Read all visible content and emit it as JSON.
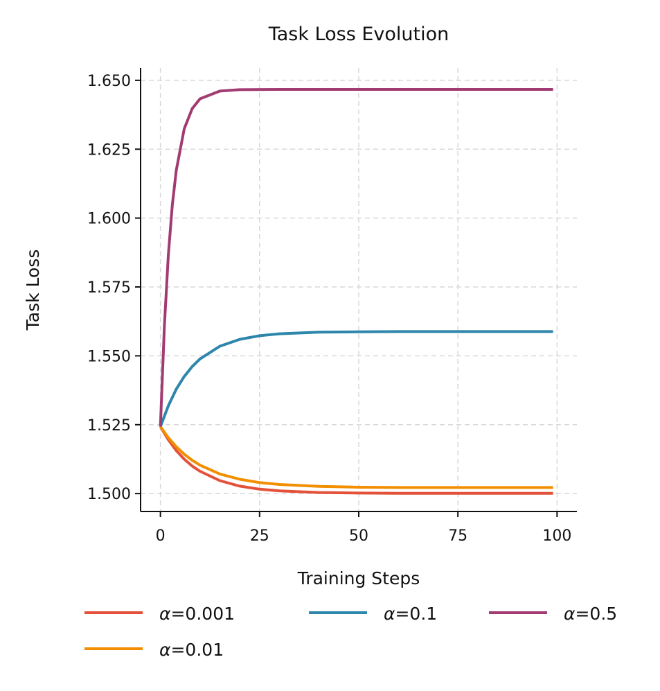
{
  "chart_data": {
    "type": "line",
    "title": "Task Loss Evolution",
    "xlabel": "Training Steps",
    "ylabel": "Task Loss",
    "xlim": [
      -5,
      105
    ],
    "ylim": [
      1.4935,
      1.6545
    ],
    "xticks": [
      0,
      25,
      50,
      75,
      100
    ],
    "xtick_labels": [
      "0",
      "25",
      "50",
      "75",
      "100"
    ],
    "yticks": [
      1.5,
      1.525,
      1.55,
      1.575,
      1.6,
      1.625,
      1.65
    ],
    "ytick_labels": [
      "1.500",
      "1.525",
      "1.550",
      "1.575",
      "1.600",
      "1.625",
      "1.650"
    ],
    "grid": true,
    "legend_position": "bottom",
    "series": [
      {
        "name": "α=0.001",
        "prefix": "α",
        "suffix": "=0.001",
        "color": "#e4513a",
        "x": [
          0,
          2,
          4,
          6,
          8,
          10,
          15,
          20,
          25,
          30,
          40,
          50,
          60,
          70,
          80,
          90,
          99
        ],
        "y": [
          1.5243,
          1.5195,
          1.5156,
          1.5125,
          1.51,
          1.5081,
          1.5047,
          1.5027,
          1.5016,
          1.501,
          1.5004,
          1.5002,
          1.5001,
          1.5001,
          1.5001,
          1.5001,
          1.5001
        ]
      },
      {
        "name": "α=0.01",
        "prefix": "α",
        "suffix": "=0.01",
        "color": "#f18f01",
        "x": [
          0,
          2,
          4,
          6,
          8,
          10,
          15,
          20,
          25,
          30,
          40,
          50,
          60,
          70,
          80,
          90,
          99
        ],
        "y": [
          1.5243,
          1.5203,
          1.517,
          1.5143,
          1.5121,
          1.5103,
          1.5071,
          1.5052,
          1.504,
          1.5033,
          1.5026,
          1.5023,
          1.5022,
          1.5022,
          1.5022,
          1.5022,
          1.5022
        ]
      },
      {
        "name": "α=0.1",
        "prefix": "α",
        "suffix": "=0.1",
        "color": "#2e86ab",
        "x": [
          0,
          2,
          4,
          6,
          8,
          10,
          15,
          20,
          25,
          30,
          40,
          50,
          60,
          70,
          80,
          90,
          99
        ],
        "y": [
          1.5243,
          1.5319,
          1.5379,
          1.5425,
          1.5461,
          1.5489,
          1.5535,
          1.556,
          1.5573,
          1.558,
          1.5586,
          1.5587,
          1.5588,
          1.5588,
          1.5588,
          1.5588,
          1.5588
        ]
      },
      {
        "name": "α=0.5",
        "prefix": "α",
        "suffix": "=0.5",
        "color": "#a23b72",
        "x": [
          0,
          1,
          2,
          3,
          4,
          6,
          8,
          10,
          15,
          20,
          30,
          50,
          70,
          99
        ],
        "y": [
          1.5243,
          1.561,
          1.5867,
          1.6047,
          1.6173,
          1.6324,
          1.6397,
          1.6433,
          1.6461,
          1.6466,
          1.6467,
          1.6467,
          1.6467,
          1.6467
        ]
      }
    ]
  }
}
